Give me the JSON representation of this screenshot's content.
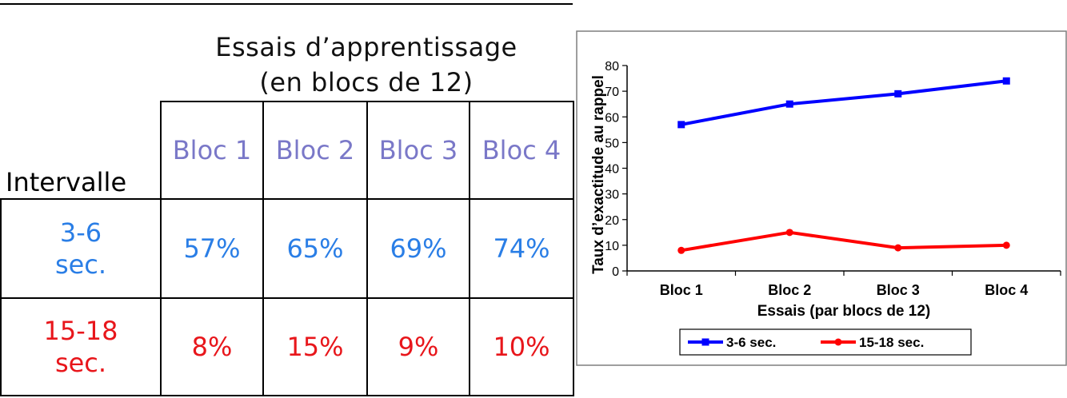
{
  "table": {
    "title_line1": "Essais d’apprentissage",
    "title_line2": "(en blocs de 12)",
    "row_header": "Intervalle",
    "columns": [
      "Bloc 1",
      "Bloc 2",
      "Bloc 3",
      "Bloc 4"
    ],
    "rows": [
      {
        "label_line1": "3-6",
        "label_line2": "sec.",
        "values": [
          "57%",
          "65%",
          "69%",
          "74%"
        ],
        "color": "#2a7ee6"
      },
      {
        "label_line1": "15-18",
        "label_line2": "sec.",
        "values": [
          "8%",
          "15%",
          "9%",
          "10%"
        ],
        "color": "#e8161b"
      }
    ]
  },
  "chart_data": {
    "type": "line",
    "categories": [
      "Bloc 1",
      "Bloc 2",
      "Bloc 3",
      "Bloc 4"
    ],
    "series": [
      {
        "name": "3-6 sec.",
        "values": [
          57,
          65,
          69,
          74
        ],
        "color": "#0000ff",
        "marker": "square"
      },
      {
        "name": "15-18 sec.",
        "values": [
          8,
          15,
          9,
          10
        ],
        "color": "#ff0000",
        "marker": "circle"
      }
    ],
    "title": "",
    "xlabel": "Essais (par blocs de 12)",
    "ylabel": "Taux d’exactitude au rappel",
    "ylim": [
      0,
      80
    ],
    "yticks": [
      0,
      10,
      20,
      30,
      40,
      50,
      60,
      70,
      80
    ],
    "grid": false,
    "legend_position": "bottom"
  }
}
